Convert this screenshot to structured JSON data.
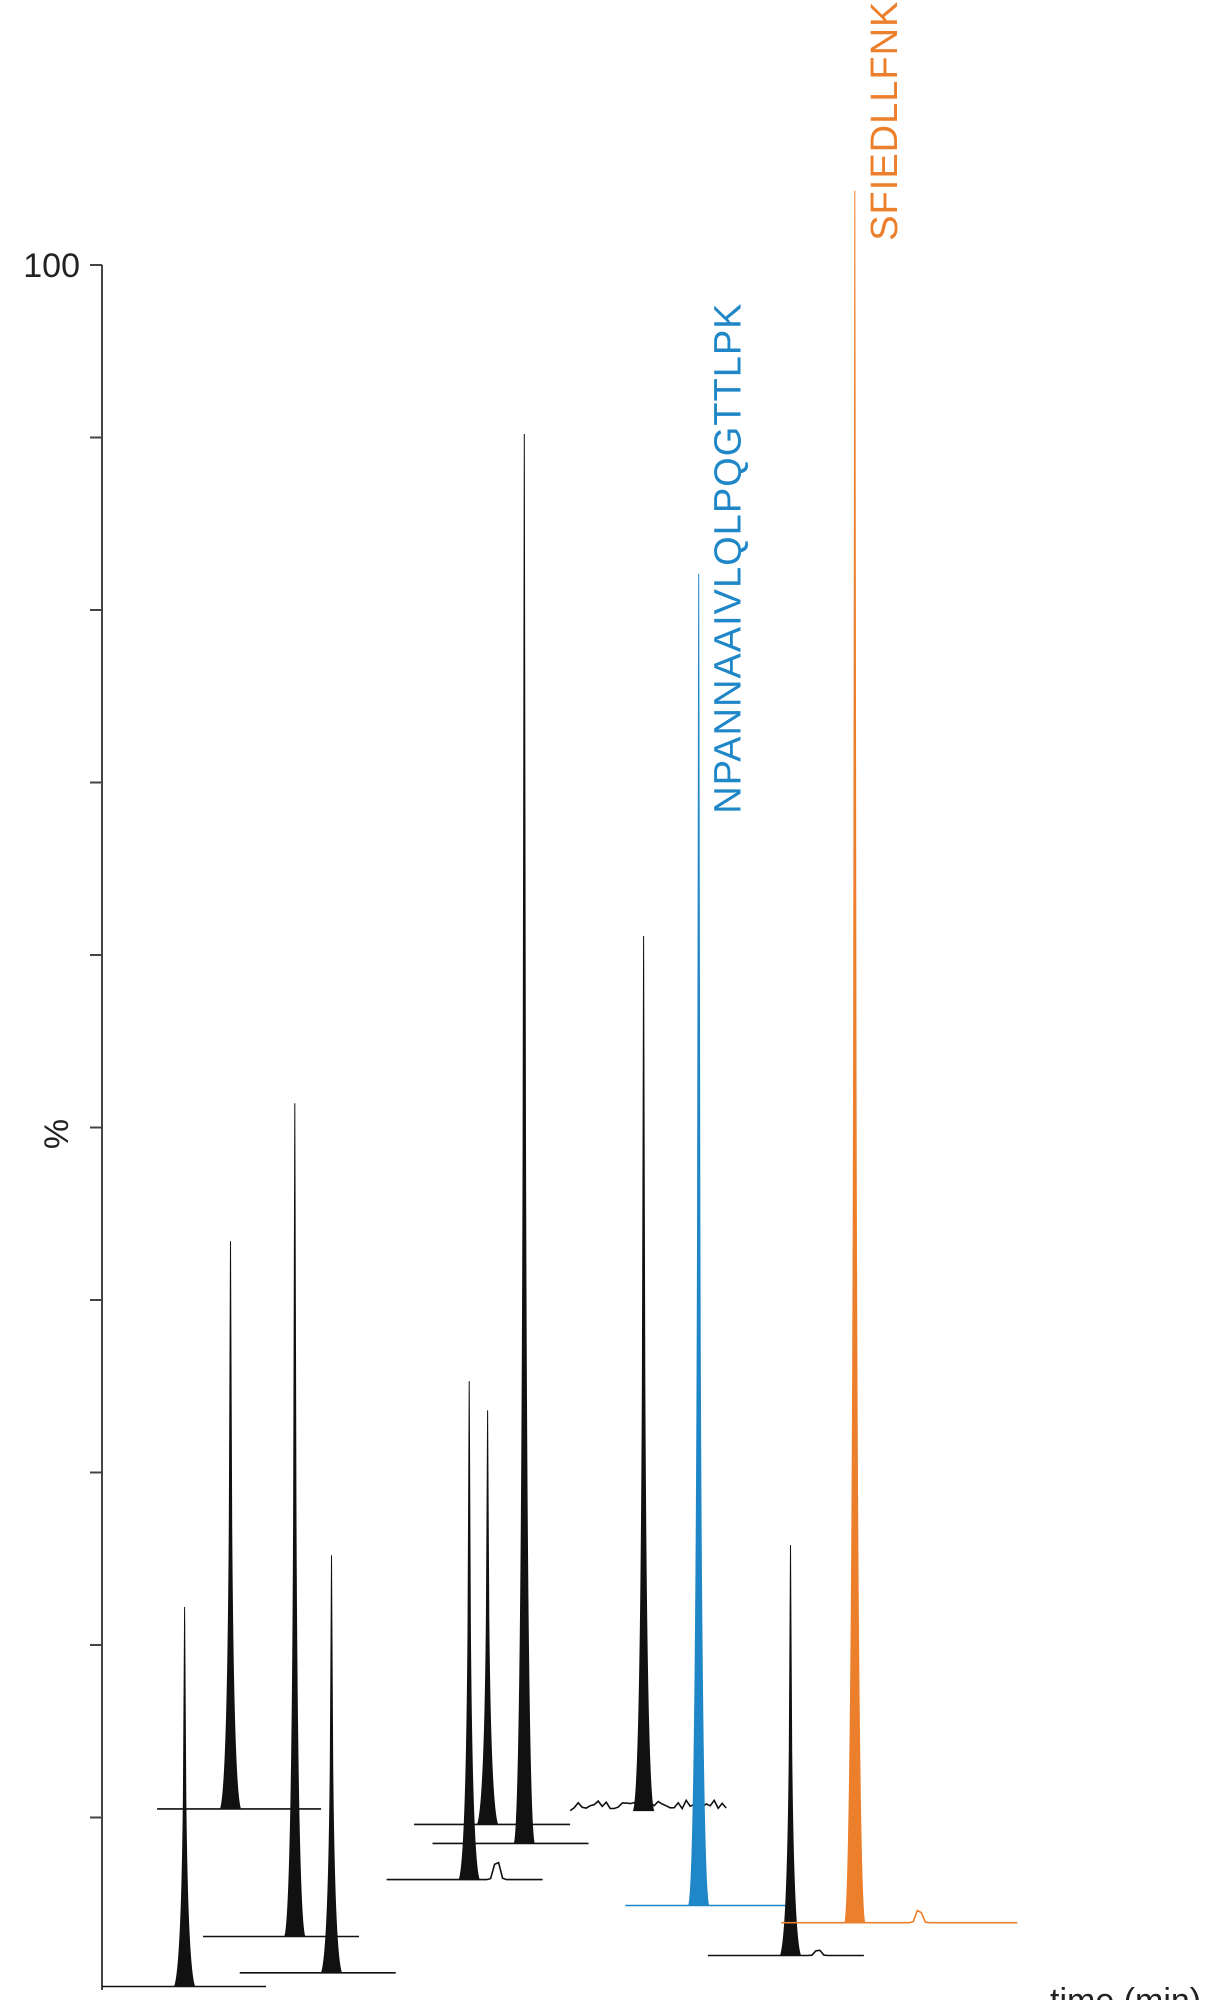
{
  "chart_data": {
    "type": "area",
    "title": "",
    "ylabel": "%",
    "xlabel": "time (min)",
    "ylim": [
      0,
      100
    ],
    "yticks": [
      {
        "value": 100,
        "label": "100"
      },
      {
        "value": 90,
        "label": ""
      },
      {
        "value": 80,
        "label": ""
      },
      {
        "value": 70,
        "label": ""
      },
      {
        "value": 60,
        "label": ""
      },
      {
        "value": 50,
        "label": ""
      },
      {
        "value": 40,
        "label": ""
      },
      {
        "value": 30,
        "label": ""
      },
      {
        "value": 20,
        "label": ""
      },
      {
        "value": 10,
        "label": ""
      }
    ],
    "colors": {
      "default": "#111111",
      "highlight_blue": "#1f87c8",
      "highlight_orange": "#ec7f2c",
      "axis": "#444444"
    },
    "traces": [
      {
        "rt": 0.09,
        "baseline": 0.2,
        "apex": 22.2,
        "color_key": "default",
        "seg": [
          0.0,
          0.18
        ]
      },
      {
        "rt": 0.14,
        "baseline": 10.5,
        "apex": 43.4,
        "color_key": "default",
        "seg": [
          0.06,
          0.24
        ]
      },
      {
        "rt": 0.21,
        "baseline": 3.1,
        "apex": 51.4,
        "color_key": "default",
        "seg": [
          0.11,
          0.28
        ]
      },
      {
        "rt": 0.25,
        "baseline": 1.0,
        "apex": 25.2,
        "color_key": "default",
        "seg": [
          0.15,
          0.32
        ]
      },
      {
        "rt": 0.4,
        "baseline": 6.4,
        "apex": 35.3,
        "color_key": "default",
        "seg": [
          0.31,
          0.48
        ],
        "bump": [
          0.43,
          1.3
        ]
      },
      {
        "rt": 0.42,
        "baseline": 9.6,
        "apex": 33.6,
        "color_key": "default",
        "seg": [
          0.34,
          0.51
        ]
      },
      {
        "rt": 0.46,
        "baseline": 8.5,
        "apex": 90.2,
        "color_key": "default",
        "seg": [
          0.36,
          0.53
        ]
      },
      {
        "rt": 0.59,
        "baseline": 10.4,
        "apex": 61.1,
        "color_key": "default",
        "seg": [
          0.51,
          0.68
        ],
        "noise": 0.7
      },
      {
        "rt": 0.65,
        "baseline": 4.9,
        "apex": 82.1,
        "color_key": "highlight_blue",
        "seg": [
          0.57,
          0.75
        ],
        "name": "NPANNAAIVLQLPQGTTLPK"
      },
      {
        "rt": 0.75,
        "baseline": 2.0,
        "apex": 25.8,
        "color_key": "default",
        "seg": [
          0.66,
          0.83
        ],
        "bump": [
          0.78,
          0.4
        ]
      },
      {
        "rt": 0.82,
        "baseline": 3.9,
        "apex": 104.3,
        "color_key": "highlight_orange",
        "seg": [
          0.74,
          1.0
        ],
        "name": "SFIEDLLFNK",
        "bump": [
          0.89,
          0.9
        ]
      }
    ]
  }
}
